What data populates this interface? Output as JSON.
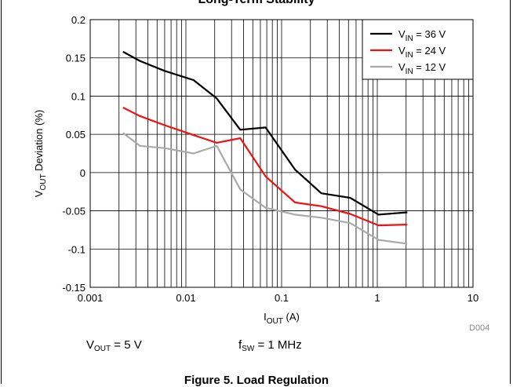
{
  "page": {
    "top_title": "Long-Term Stability",
    "condition_vout": "V_OUT = 5 V",
    "condition_vout_main": "V",
    "condition_vout_sub": "OUT",
    "condition_vout_rest": " = 5 V",
    "condition_fsw_main": "f",
    "condition_fsw_sub": "SW",
    "condition_fsw_rest": " = 1 MHz",
    "figure_id": "D004",
    "figure_caption": "Figure 5. Load Regulation"
  },
  "chart_data": {
    "type": "line",
    "xlabel_main": "I",
    "xlabel_sub": "OUT",
    "xlabel_rest": " (A)",
    "ylabel_main": "V",
    "ylabel_sub": "OUT",
    "ylabel_rest": " Deviation (%)",
    "x_scale": "log",
    "xlim": [
      0.001,
      10
    ],
    "ylim": [
      -0.15,
      0.2
    ],
    "x_ticks": [
      0.001,
      0.01,
      0.1,
      1,
      10
    ],
    "x_tick_labels": [
      "0.001",
      "0.01",
      "0.1",
      "1",
      "10"
    ],
    "y_ticks": [
      -0.15,
      -0.1,
      -0.05,
      0,
      0.05,
      0.1,
      0.15,
      0.2
    ],
    "y_tick_labels": [
      "-0.15",
      "-0.1",
      "-0.05",
      "0",
      "0.05",
      "0.1",
      "0.15",
      "0.2"
    ],
    "grid": true,
    "legend_position": "top-right",
    "series": [
      {
        "name_main": "V",
        "name_sub": "IN",
        "name_rest": " = 36 V",
        "color": "#000000",
        "x": [
          0.0022,
          0.0033,
          0.006,
          0.012,
          0.021,
          0.037,
          0.068,
          0.138,
          0.26,
          0.52,
          1.03,
          2.06
        ],
        "y": [
          0.158,
          0.146,
          0.133,
          0.121,
          0.097,
          0.056,
          0.059,
          0.004,
          -0.027,
          -0.033,
          -0.055,
          -0.052
        ]
      },
      {
        "name_main": "V",
        "name_sub": "IN",
        "name_rest": " = 24 V",
        "color": "#ee1111",
        "x": [
          0.0022,
          0.0033,
          0.006,
          0.012,
          0.021,
          0.037,
          0.068,
          0.138,
          0.26,
          0.52,
          1.03,
          2.06
        ],
        "y": [
          0.085,
          0.074,
          0.062,
          0.049,
          0.039,
          0.045,
          -0.005,
          -0.039,
          -0.044,
          -0.054,
          -0.069,
          -0.068
        ]
      },
      {
        "name_main": "V",
        "name_sub": "IN",
        "name_rest": " = 12 V",
        "color": "#aaaaaa",
        "x": [
          0.0022,
          0.0033,
          0.006,
          0.012,
          0.021,
          0.037,
          0.068,
          0.138,
          0.26,
          0.52,
          1.03,
          2.06
        ],
        "y": [
          0.052,
          0.035,
          0.032,
          0.025,
          0.035,
          -0.022,
          -0.046,
          -0.055,
          -0.059,
          -0.066,
          -0.088,
          -0.093
        ]
      }
    ]
  }
}
